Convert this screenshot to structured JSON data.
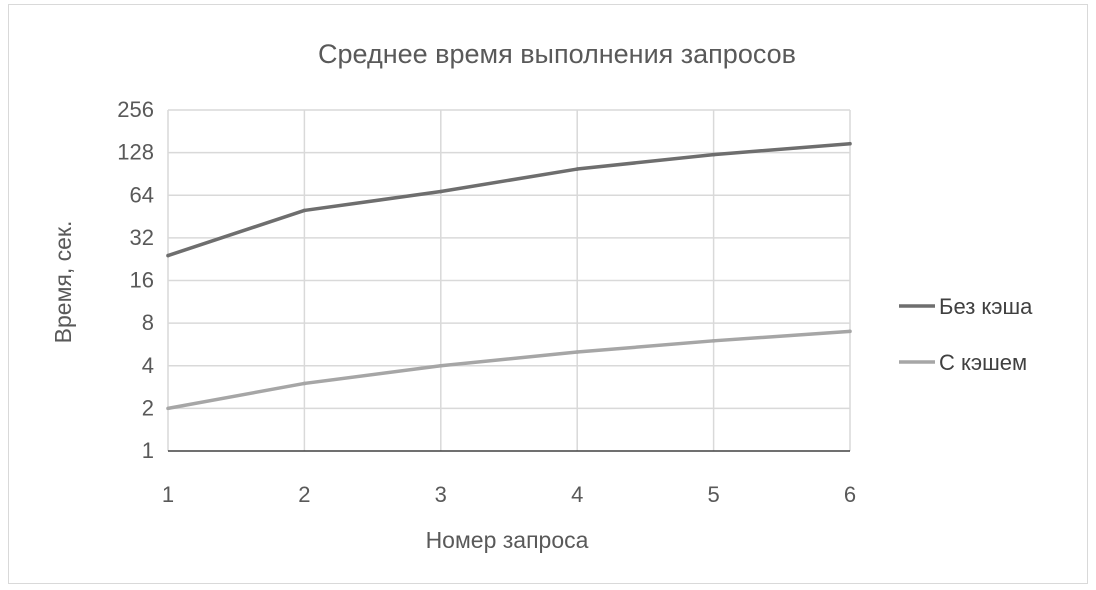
{
  "chart_data": {
    "type": "line",
    "title": "Среднее время выполнения запросов",
    "xlabel": "Номер запроса",
    "ylabel": "Время, сек.",
    "y_scale": "log2",
    "ylim": [
      1,
      256
    ],
    "y_ticks": [
      "1",
      "2",
      "4",
      "8",
      "16",
      "32",
      "64",
      "128",
      "256"
    ],
    "x": [
      1,
      2,
      3,
      4,
      5,
      6
    ],
    "x_ticks": [
      "1",
      "2",
      "3",
      "4",
      "5",
      "6"
    ],
    "series": [
      {
        "name": "Без кэша",
        "color": "#6e6e6e",
        "values": [
          24,
          50,
          68,
          98,
          124,
          148
        ]
      },
      {
        "name": "С кэшем",
        "color": "#a6a6a6",
        "values": [
          2,
          3,
          4,
          5,
          6,
          7
        ]
      }
    ],
    "grid": true,
    "legend_position": "right"
  }
}
